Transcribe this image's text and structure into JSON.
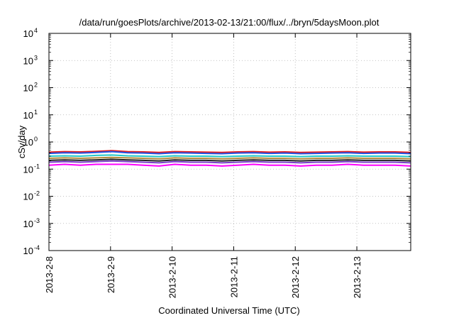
{
  "chart_data": {
    "type": "line",
    "title": "/data/run/goesPlots/archive/2013-02-13/21:00/flux/../bryn/5daysMoon.plot",
    "xlabel": "Coordinated Universal Time (UTC)",
    "ylabel": "cSv/day",
    "y_scale": "log",
    "ylim": [
      0.0001,
      10000
    ],
    "y_ticks": [
      {
        "value": 0.0001,
        "base": "10",
        "exp": "-4"
      },
      {
        "value": 0.001,
        "base": "10",
        "exp": "-3"
      },
      {
        "value": 0.01,
        "base": "10",
        "exp": "-2"
      },
      {
        "value": 0.1,
        "base": "10",
        "exp": "-1"
      },
      {
        "value": 1,
        "base": "10",
        "exp": "0"
      },
      {
        "value": 10,
        "base": "10",
        "exp": "1"
      },
      {
        "value": 100,
        "base": "10",
        "exp": "2"
      },
      {
        "value": 1000,
        "base": "10",
        "exp": "3"
      },
      {
        "value": 10000,
        "base": "10",
        "exp": "4"
      }
    ],
    "x_range": [
      "2013-02-08T00:00",
      "2013-02-13T21:00"
    ],
    "x_ticks": [
      {
        "value": "2013-02-08T00:00",
        "label": "2013-2-8"
      },
      {
        "value": "2013-02-09T00:00",
        "label": "2013-2-9"
      },
      {
        "value": "2013-02-10T00:00",
        "label": "2013-2-10"
      },
      {
        "value": "2013-02-11T00:00",
        "label": "2013-2-11"
      },
      {
        "value": "2013-02-12T00:00",
        "label": "2013-2-12"
      },
      {
        "value": "2013-02-13T00:00",
        "label": "2013-2-13"
      }
    ],
    "grid": true,
    "series": [
      {
        "color": "#e41a1c",
        "values": [
          0.42,
          0.44,
          0.43,
          0.45,
          0.48,
          0.44,
          0.43,
          0.41,
          0.44,
          0.43,
          0.42,
          0.41,
          0.43,
          0.44,
          0.42,
          0.43,
          0.41,
          0.42,
          0.43,
          0.44,
          0.42,
          0.43,
          0.43,
          0.41
        ]
      },
      {
        "color": "#2255e6",
        "values": [
          0.38,
          0.4,
          0.39,
          0.41,
          0.44,
          0.4,
          0.39,
          0.37,
          0.4,
          0.39,
          0.38,
          0.37,
          0.39,
          0.4,
          0.38,
          0.39,
          0.37,
          0.38,
          0.39,
          0.4,
          0.38,
          0.39,
          0.39,
          0.37
        ]
      },
      {
        "color": "#22c8c8",
        "values": [
          0.3,
          0.31,
          0.3,
          0.32,
          0.33,
          0.31,
          0.3,
          0.29,
          0.31,
          0.3,
          0.3,
          0.29,
          0.3,
          0.31,
          0.3,
          0.3,
          0.29,
          0.3,
          0.3,
          0.31,
          0.3,
          0.3,
          0.3,
          0.29
        ]
      },
      {
        "color": "#b08a3c",
        "values": [
          0.25,
          0.26,
          0.25,
          0.26,
          0.27,
          0.26,
          0.25,
          0.24,
          0.26,
          0.25,
          0.25,
          0.24,
          0.25,
          0.26,
          0.25,
          0.25,
          0.24,
          0.25,
          0.25,
          0.26,
          0.25,
          0.25,
          0.25,
          0.24
        ]
      },
      {
        "color": "#222222",
        "values": [
          0.21,
          0.22,
          0.21,
          0.22,
          0.23,
          0.22,
          0.21,
          0.2,
          0.22,
          0.21,
          0.21,
          0.2,
          0.21,
          0.22,
          0.21,
          0.21,
          0.2,
          0.21,
          0.21,
          0.22,
          0.21,
          0.21,
          0.21,
          0.2
        ]
      },
      {
        "color": "#7a3fc8",
        "values": [
          0.18,
          0.19,
          0.18,
          0.19,
          0.2,
          0.19,
          0.18,
          0.17,
          0.19,
          0.18,
          0.18,
          0.17,
          0.18,
          0.19,
          0.18,
          0.18,
          0.17,
          0.18,
          0.18,
          0.19,
          0.18,
          0.18,
          0.18,
          0.17
        ]
      },
      {
        "color": "#ff00ff",
        "values": [
          0.14,
          0.15,
          0.14,
          0.15,
          0.15,
          0.15,
          0.14,
          0.13,
          0.15,
          0.14,
          0.14,
          0.13,
          0.14,
          0.15,
          0.14,
          0.14,
          0.13,
          0.14,
          0.14,
          0.15,
          0.14,
          0.14,
          0.14,
          0.13
        ]
      }
    ]
  }
}
